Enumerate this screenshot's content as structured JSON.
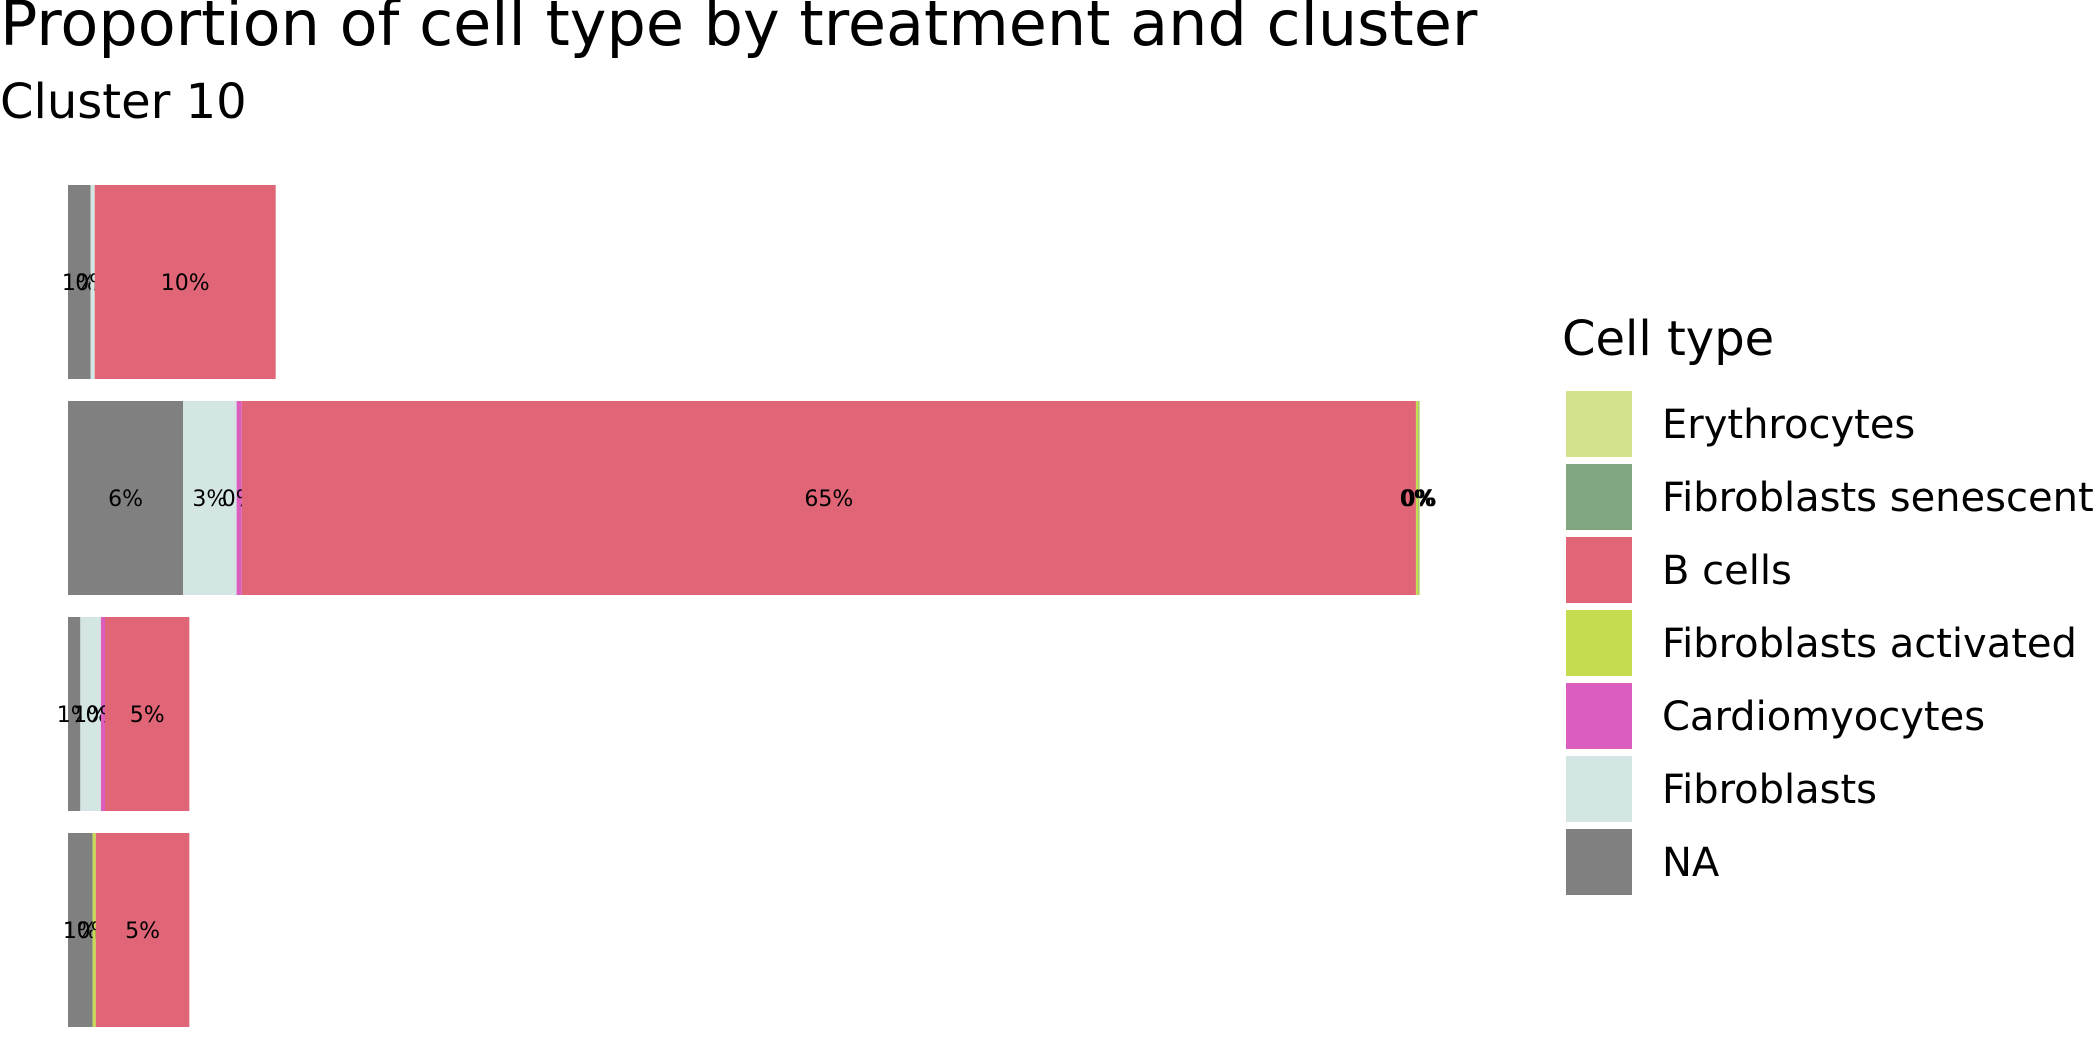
{
  "chart_data": {
    "type": "bar",
    "orientation": "horizontal",
    "stacked": true,
    "title": "Proportion of cell type by treatment and cluster",
    "subtitle": "Cluster 10",
    "xlabel": "",
    "ylabel": "",
    "xlim": [
      0,
      65.65
    ],
    "grid": false,
    "legend": {
      "title": "Cell type",
      "position": "right",
      "entries": [
        {
          "name": "Erythrocytes",
          "color": "#d2e38e"
        },
        {
          "name": "Fibroblasts senescent",
          "color": "#7fa67f"
        },
        {
          "name": "B cells",
          "color": "#df6577"
        },
        {
          "name": "Fibroblasts activated",
          "color": "#c6dc50"
        },
        {
          "name": "Cardiomyocytes",
          "color": "#db5ebf"
        },
        {
          "name": "Fibroblasts",
          "color": "#d4e6e3"
        },
        {
          "name": "NA",
          "color": "#808080"
        }
      ]
    },
    "stack_order": [
      "NA",
      "Fibroblasts",
      "Cardiomyocytes",
      "B cells",
      "Fibroblasts activated",
      "Fibroblasts senescent",
      "Erythrocytes"
    ],
    "bars": [
      {
        "segments": [
          {
            "category": "NA",
            "value": 1.1,
            "label": "1%"
          },
          {
            "category": "Fibroblasts",
            "value": 0.2,
            "label": "0%"
          },
          {
            "category": "B cells",
            "value": 8.8,
            "label": "10%"
          }
        ]
      },
      {
        "segments": [
          {
            "category": "NA",
            "value": 5.6,
            "label": "6%"
          },
          {
            "category": "Fibroblasts",
            "value": 2.6,
            "label": "3%"
          },
          {
            "category": "Cardiomyocytes",
            "value": 0.25,
            "label": "0%"
          },
          {
            "category": "B cells",
            "value": 57.1,
            "label": "65%"
          },
          {
            "category": "Fibroblasts activated",
            "value": 0.1,
            "label": "0%"
          },
          {
            "category": "Fibroblasts senescent",
            "value": 0.03,
            "label": "0%"
          },
          {
            "category": "Erythrocytes",
            "value": 0.07,
            "label": "0%"
          }
        ]
      },
      {
        "segments": [
          {
            "category": "NA",
            "value": 0.6,
            "label": "1%"
          },
          {
            "category": "Fibroblasts",
            "value": 1.0,
            "label": "1%"
          },
          {
            "category": "Cardiomyocytes",
            "value": 0.2,
            "label": "0%"
          },
          {
            "category": "B cells",
            "value": 4.1,
            "label": "5%"
          }
        ]
      },
      {
        "segments": [
          {
            "category": "NA",
            "value": 1.2,
            "label": "1%"
          },
          {
            "category": "Fibroblasts activated",
            "value": 0.15,
            "label": "0%"
          },
          {
            "category": "B cells",
            "value": 4.55,
            "label": "5%"
          }
        ]
      }
    ]
  }
}
